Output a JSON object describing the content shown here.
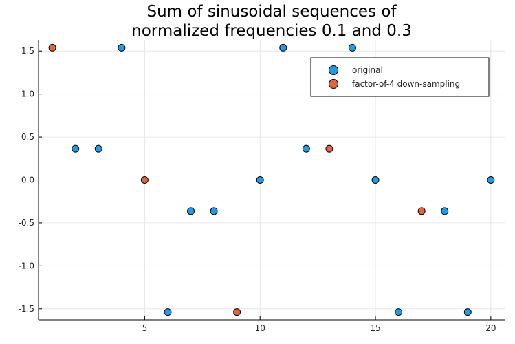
{
  "chart_data": {
    "type": "scatter",
    "title_lines": [
      "Sum of sinusoidal sequences of",
      "normalized frequencies 0.1 and 0.3"
    ],
    "xlabel": "",
    "ylabel": "",
    "xlim": [
      0.4,
      20.6
    ],
    "ylim": [
      -1.63,
      1.63
    ],
    "xticks": [
      5,
      10,
      15,
      20
    ],
    "yticks": [
      1.5,
      1.0,
      0.5,
      0.0,
      -0.5,
      -1.0,
      -1.5
    ],
    "ytick_labels": [
      "1.5",
      "1.0",
      "0.5",
      "0.0",
      "-0.5",
      "-1.0",
      "-1.5"
    ],
    "xtick_labels": [
      "5",
      "10",
      "15",
      "20"
    ],
    "grid": true,
    "legend_position": "top-right",
    "series": [
      {
        "name": "original",
        "color": "#1f9ce8",
        "x": [
          2,
          3,
          4,
          6,
          7,
          8,
          10,
          11,
          12,
          14,
          15,
          16,
          18,
          19,
          20
        ],
        "y": [
          0.363,
          0.363,
          1.539,
          -1.539,
          -0.363,
          -0.363,
          0.0,
          1.539,
          0.363,
          1.539,
          0.0,
          -1.539,
          -0.363,
          -1.539,
          0.0
        ]
      },
      {
        "name": "factor-of-4 down-sampling",
        "color": "#e3653b",
        "x": [
          1,
          5,
          9,
          13,
          17
        ],
        "y": [
          1.539,
          0.0,
          -1.539,
          0.363,
          -0.363
        ]
      }
    ]
  }
}
